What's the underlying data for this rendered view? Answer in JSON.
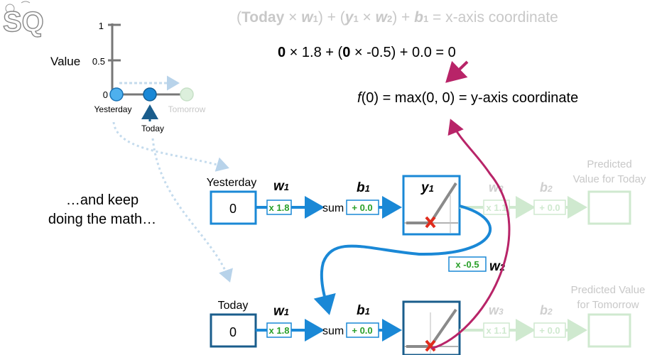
{
  "logo": {
    "text": "SQ"
  },
  "formula": {
    "general": {
      "open1": "(",
      "today": "Today",
      "times1": " × ",
      "w1": "w",
      "w1_sub": "1",
      "close1": ")",
      "plus1": " + ",
      "open2": "(",
      "y1": "y",
      "y1_sub": "1",
      "times2": " × ",
      "w2": "w",
      "w2_sub": "2",
      "close2": ")",
      "plus2": " + ",
      "b1": "b",
      "b1_sub": "1",
      "tail": " = x-axis coordinate"
    },
    "numeric": {
      "a": "0",
      "b": " × 1.8 + (",
      "c": "0",
      "d": " × -0.5) + 0.0 = 0"
    },
    "activation": {
      "f": "f",
      "rest": "(0) = max(0, 0) = y-axis coordinate"
    }
  },
  "mini_plot": {
    "y_ticks": [
      "1",
      "0.5",
      "0"
    ],
    "y_label": "Value",
    "points": [
      {
        "label": "Yesterday",
        "value": 0,
        "state": "known"
      },
      {
        "label": "Today",
        "value": 0,
        "state": "current"
      },
      {
        "label": "Tomorrow",
        "value": 0,
        "state": "future"
      }
    ]
  },
  "caption": {
    "line1": "…and keep",
    "line2": "doing the math…"
  },
  "network": {
    "row1": {
      "input_label": "Yesterday",
      "input_value": "0",
      "weight_symbol": "w",
      "weight_sub": "1",
      "weight_value": "x 1.8",
      "sum_label": "sum",
      "bias_symbol": "b",
      "bias_sub": "1",
      "bias_value": "+ 0.0",
      "activation_label": "y",
      "activation_sub": "1",
      "out_weight_symbol": "w",
      "out_weight_sub": "3",
      "out_weight_value": "x 1.1",
      "out_bias_symbol": "b",
      "out_bias_sub": "2",
      "out_bias_value": "+ 0.0",
      "output_label_1": "Predicted",
      "output_label_2": "Value for Today"
    },
    "recurrent": {
      "weight_value": "x -0.5",
      "weight_symbol": "w",
      "weight_sub": "2"
    },
    "row2": {
      "input_label": "Today",
      "input_value": "0",
      "weight_symbol": "w",
      "weight_sub": "1",
      "weight_value": "x 1.8",
      "sum_label": "sum",
      "bias_symbol": "b",
      "bias_sub": "1",
      "bias_value": "+ 0.0",
      "out_weight_symbol": "w",
      "out_weight_sub": "3",
      "out_weight_value": "x 1.1",
      "out_bias_symbol": "b",
      "out_bias_sub": "2",
      "out_bias_value": "+ 0.0",
      "output_label_1": "Predicted Value",
      "output_label_2": "for Tomorrow"
    }
  },
  "colors": {
    "blue": "#1a88d6",
    "dark_blue": "#1a5d8c",
    "green": "#2aa02a",
    "faded_blue": "#c4dbed",
    "faded_green": "#cfe9cf",
    "faded_text": "#c8c8c8",
    "magenta": "#b82468",
    "red_x": "#e02b1c",
    "gray": "#808080"
  }
}
